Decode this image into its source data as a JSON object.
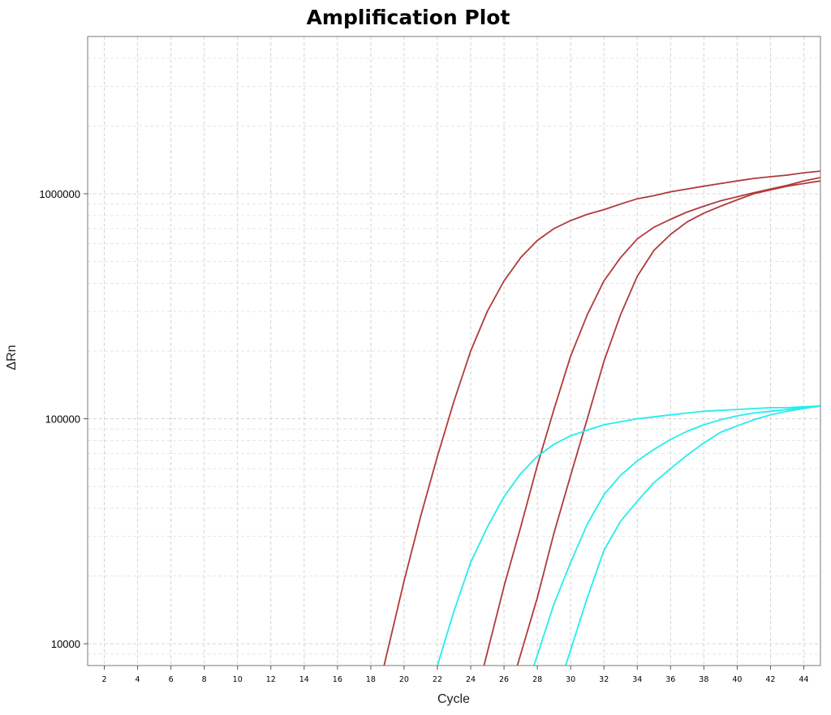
{
  "chart_data": {
    "type": "line",
    "title": "Amplification Plot",
    "xlabel": "Cycle",
    "ylabel": "ΔRn",
    "yscale": "log",
    "xlim": [
      1,
      45
    ],
    "ylim": [
      8000,
      5000000
    ],
    "xticks": [
      2,
      4,
      6,
      8,
      10,
      12,
      14,
      16,
      18,
      20,
      22,
      24,
      26,
      28,
      30,
      32,
      34,
      36,
      38,
      40,
      42,
      44
    ],
    "yticks": [
      10000,
      100000,
      1000000
    ],
    "ytick_labels": [
      "10000",
      "100000",
      "1000000"
    ],
    "grid": true,
    "series": [
      {
        "color": "#b03a3a",
        "x": [
          18.8,
          20,
          21,
          22,
          23,
          24,
          25,
          26,
          27,
          28,
          29,
          30,
          31,
          32,
          33,
          34,
          35,
          36,
          37,
          38,
          39,
          40,
          41,
          42,
          43,
          44,
          45
        ],
        "y": [
          8000,
          19000,
          37000,
          68000,
          120000,
          200000,
          300000,
          410000,
          520000,
          620000,
          700000,
          760000,
          810000,
          850000,
          900000,
          950000,
          980000,
          1020000,
          1050000,
          1080000,
          1110000,
          1140000,
          1170000,
          1190000,
          1210000,
          1240000,
          1260000
        ]
      },
      {
        "color": "#b03a3a",
        "x": [
          24.8,
          26,
          27,
          28,
          29,
          30,
          31,
          32,
          33,
          34,
          35,
          36,
          37,
          38,
          39,
          40,
          41,
          42,
          43,
          44,
          45
        ],
        "y": [
          8000,
          18000,
          33000,
          62000,
          110000,
          190000,
          290000,
          410000,
          520000,
          630000,
          710000,
          770000,
          830000,
          880000,
          930000,
          970000,
          1010000,
          1050000,
          1090000,
          1140000,
          1180000
        ]
      },
      {
        "color": "#b03a3a",
        "x": [
          26.8,
          28,
          29,
          30,
          31,
          32,
          33,
          34,
          35,
          36,
          37,
          38,
          39,
          40,
          41,
          42,
          43,
          44,
          45
        ],
        "y": [
          8000,
          16000,
          31000,
          56000,
          100000,
          180000,
          290000,
          430000,
          560000,
          660000,
          750000,
          820000,
          880000,
          940000,
          1000000,
          1040000,
          1080000,
          1110000,
          1140000
        ]
      },
      {
        "color": "#22eeee",
        "x": [
          22,
          23,
          24,
          25,
          26,
          27,
          28,
          29,
          30,
          31,
          32,
          33,
          34,
          35,
          36,
          37,
          38,
          39,
          40,
          41,
          42,
          43,
          44,
          45
        ],
        "y": [
          8000,
          14000,
          23000,
          33000,
          45000,
          57000,
          68000,
          77000,
          84000,
          89000,
          94000,
          97000,
          100000,
          102000,
          104000,
          106000,
          108000,
          109000,
          110000,
          111000,
          112000,
          112000,
          113000,
          114000
        ]
      },
      {
        "color": "#22eeee",
        "x": [
          27.8,
          29,
          30,
          31,
          32,
          33,
          34,
          35,
          36,
          37,
          38,
          39,
          40,
          41,
          42,
          43,
          44,
          45
        ],
        "y": [
          8000,
          15000,
          23000,
          34000,
          46000,
          56000,
          65000,
          73000,
          81000,
          88000,
          94000,
          99000,
          103000,
          106000,
          108000,
          110000,
          112000,
          114000
        ]
      },
      {
        "color": "#22eeee",
        "x": [
          29.7,
          31,
          32,
          33,
          34,
          35,
          36,
          37,
          38,
          39,
          40,
          41,
          42,
          43,
          44,
          45
        ],
        "y": [
          8000,
          16000,
          26000,
          35000,
          43000,
          52000,
          60000,
          69000,
          78000,
          87000,
          93000,
          99000,
          104000,
          108000,
          111000,
          114000
        ]
      }
    ]
  }
}
